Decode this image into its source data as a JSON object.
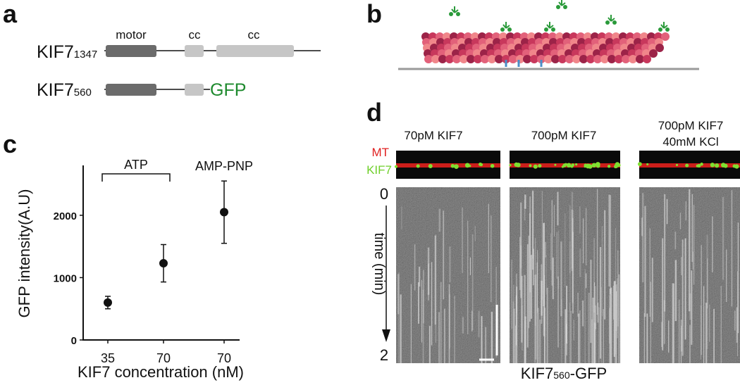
{
  "panel_a": {
    "label": "a",
    "constructs": [
      {
        "name": "KIF7",
        "subscript": "1347"
      },
      {
        "name": "KIF7",
        "subscript": "560",
        "tag": "GFP"
      }
    ],
    "domains": [
      "motor",
      "cc",
      "cc"
    ]
  },
  "panel_b": {
    "label": "b"
  },
  "chart_data": {
    "type": "scatter",
    "panel_label": "c",
    "x_label": "KIF7 concentration (nM)",
    "y_label": "GFP intensity(A.U)",
    "categories": [
      "35",
      "70",
      "70"
    ],
    "values": [
      600,
      1230,
      2050
    ],
    "errors": [
      100,
      300,
      500
    ],
    "color": "#111111",
    "annotations": [
      "ATP",
      "AMP-PNP"
    ],
    "ylim": [
      0,
      2800
    ],
    "yticks": [
      0,
      1000,
      2000
    ]
  },
  "panel_d": {
    "label": "d",
    "conditions": [
      {
        "lines": [
          "70pM KIF7"
        ]
      },
      {
        "lines": [
          "700pM KIF7"
        ]
      },
      {
        "lines": [
          "700pM KIF7",
          "40mM KCl"
        ]
      }
    ],
    "channels": [
      "MT",
      "KIF7"
    ],
    "time_start": "0",
    "time_end": "2",
    "time_label": "time (min)",
    "bottom_label": {
      "name": "KIF7",
      "subscript": "560",
      "suffix": "-GFP"
    }
  }
}
